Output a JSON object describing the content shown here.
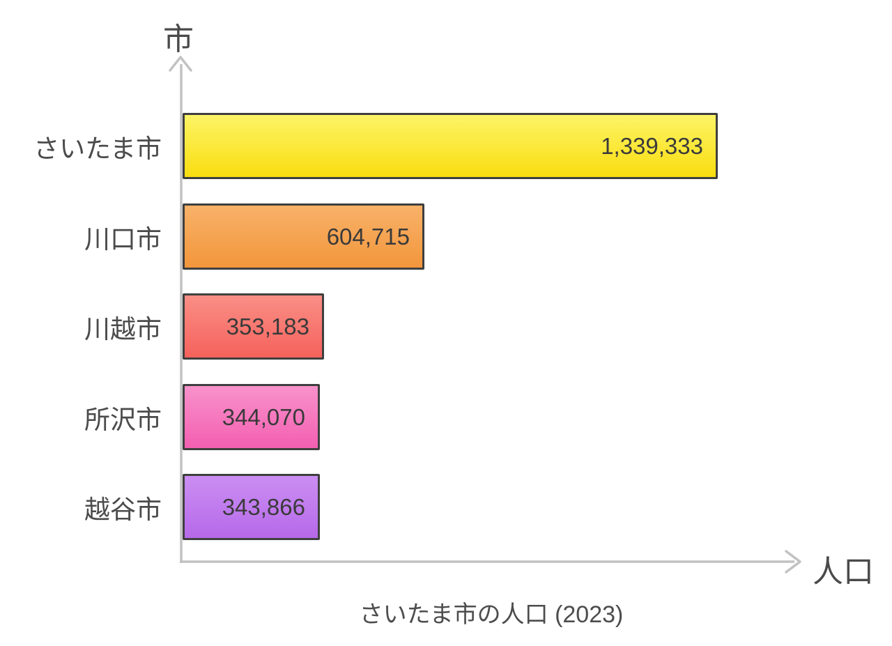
{
  "chart_data": {
    "type": "bar",
    "orientation": "horizontal",
    "title": "さいたま市の人口 (2023)",
    "xlabel": "人口",
    "ylabel": "市",
    "categories": [
      "さいたま市",
      "川口市",
      "川越市",
      "所沢市",
      "越谷市"
    ],
    "values": [
      1339333,
      604715,
      353183,
      344070,
      343866
    ],
    "value_labels": [
      "1,339,333",
      "604,715",
      "353,183",
      "344,070",
      "343,866"
    ],
    "xlim": [
      0,
      1339333
    ],
    "grid": false,
    "legend": false,
    "bar_gradients": [
      {
        "name": "yellow",
        "top": "#fcf466",
        "bottom": "#fadd10"
      },
      {
        "name": "orange",
        "top": "#f8b269",
        "bottom": "#f2963c"
      },
      {
        "name": "red",
        "top": "#f98f86",
        "bottom": "#f6625c"
      },
      {
        "name": "pink",
        "top": "#f792cb",
        "bottom": "#f45fb1"
      },
      {
        "name": "purple",
        "top": "#cb8ef2",
        "bottom": "#b669e9"
      }
    ],
    "bar_border_color": "#3f3f3f",
    "axis_color": "#c2c2c2",
    "text_color": "#4a4a4a"
  }
}
